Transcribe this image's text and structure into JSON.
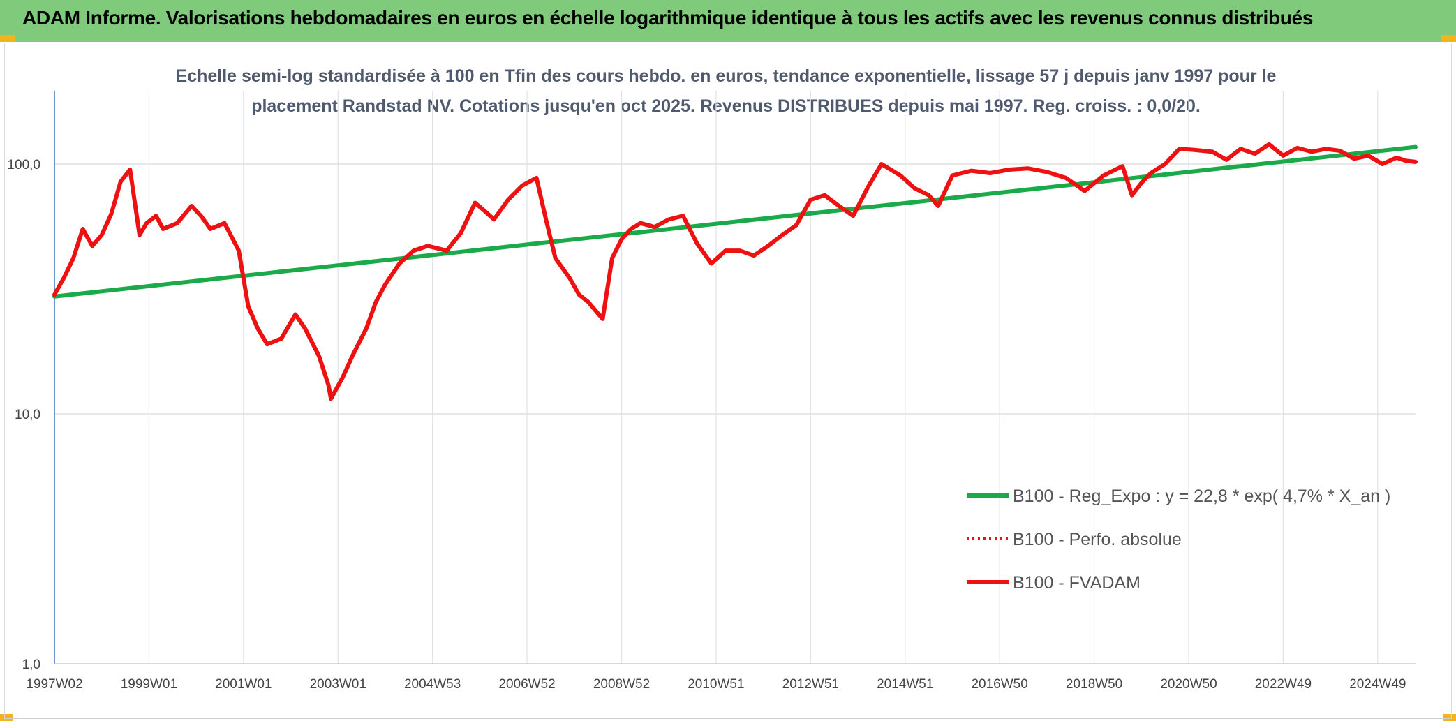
{
  "header": {
    "title": "ADAM Informe. Valorisations hebdomadaires en euros en échelle logarithmique identique à tous les actifs avec les revenus connus distribués"
  },
  "colors": {
    "header_bg": "#7fca7b",
    "corner_accent": "#f2b41c",
    "trend_line": "#1aaa4a",
    "fvadam_line": "#ee1111",
    "perfo_line": "#ee1111"
  },
  "chart_data": {
    "type": "line",
    "title_line1": "Echelle semi-log standardisée à 100 en Tfin des cours hebdo. en euros, tendance exponentielle, lissage 57 j depuis janv 1997 pour le",
    "title_line2": "placement Randstad NV. Cotations jusqu'en oct 2025. Revenus DISTRIBUES depuis mai 1997. Reg. croiss. : 0,0/20.",
    "y_scale": "log",
    "ylim": [
      1,
      100
    ],
    "x_range": [
      1997.0,
      2025.8
    ],
    "y_ticks": [
      {
        "value": 1,
        "label": "1,0"
      },
      {
        "value": 10,
        "label": "10,0"
      },
      {
        "value": 100,
        "label": "100,0"
      }
    ],
    "x_ticks": [
      {
        "pos": 1997.0,
        "label": "1997W02"
      },
      {
        "pos": 1999.0,
        "label": "1999W01"
      },
      {
        "pos": 2001.0,
        "label": "2001W01"
      },
      {
        "pos": 2003.0,
        "label": "2003W01"
      },
      {
        "pos": 2005.0,
        "label": "2004W53"
      },
      {
        "pos": 2007.0,
        "label": "2006W52"
      },
      {
        "pos": 2009.0,
        "label": "2008W52"
      },
      {
        "pos": 2011.0,
        "label": "2010W51"
      },
      {
        "pos": 2013.0,
        "label": "2012W51"
      },
      {
        "pos": 2015.0,
        "label": "2014W51"
      },
      {
        "pos": 2017.0,
        "label": "2016W50"
      },
      {
        "pos": 2019.0,
        "label": "2018W50"
      },
      {
        "pos": 2021.0,
        "label": "2020W50"
      },
      {
        "pos": 2023.0,
        "label": "2022W49"
      },
      {
        "pos": 2025.0,
        "label": "2024W49"
      }
    ],
    "grid": "vertical and horizontal, light gray",
    "legend_position": "lower-right",
    "series": [
      {
        "name": "B100 - Reg_Expo : y = 22,8 * exp( 4,7% *  X_an )",
        "style": "solid-thick",
        "color": "#1aaa4a",
        "x": [
          1997.0,
          2025.8
        ],
        "y": [
          29.5,
          117
        ]
      },
      {
        "name": "B100 - Perfo. absolue",
        "style": "dotted",
        "color": "#ee1111",
        "x": [],
        "y": []
      },
      {
        "name": "B100 - FVADAM",
        "style": "solid-thick",
        "color": "#ee1111",
        "x": [
          1997.0,
          1997.2,
          1997.4,
          1997.6,
          1997.8,
          1998.0,
          1998.2,
          1998.4,
          1998.6,
          1998.8,
          1998.95,
          1999.15,
          1999.3,
          1999.6,
          1999.9,
          2000.1,
          2000.3,
          2000.6,
          2000.9,
          2001.1,
          2001.3,
          2001.5,
          2001.8,
          2002.1,
          2002.3,
          2002.6,
          2002.8,
          2002.85,
          2003.1,
          2003.3,
          2003.6,
          2003.8,
          2004.0,
          2004.3,
          2004.6,
          2004.9,
          2005.1,
          2005.3,
          2005.6,
          2005.9,
          2006.1,
          2006.3,
          2006.6,
          2006.9,
          2007.2,
          2007.4,
          2007.6,
          2007.9,
          2008.1,
          2008.3,
          2008.6,
          2008.8,
          2009.0,
          2009.2,
          2009.4,
          2009.7,
          2010.0,
          2010.3,
          2010.6,
          2010.9,
          2011.2,
          2011.5,
          2011.8,
          2012.1,
          2012.4,
          2012.7,
          2013.0,
          2013.3,
          2013.6,
          2013.9,
          2014.2,
          2014.5,
          2014.9,
          2015.2,
          2015.5,
          2015.7,
          2016.0,
          2016.4,
          2016.8,
          2017.2,
          2017.6,
          2018.0,
          2018.4,
          2018.8,
          2019.2,
          2019.6,
          2019.8,
          2020.0,
          2020.2,
          2020.5,
          2020.8,
          2021.1,
          2021.5,
          2021.8,
          2022.1,
          2022.4,
          2022.7,
          2023.0,
          2023.3,
          2023.6,
          2023.9,
          2024.2,
          2024.5,
          2024.8,
          2025.1,
          2025.4,
          2025.6,
          2025.8
        ],
        "y": [
          30,
          35,
          42,
          55,
          47,
          52,
          63,
          85,
          95,
          52,
          58,
          62,
          55,
          58,
          68,
          62,
          55,
          58,
          45,
          27,
          22,
          19,
          20,
          25,
          22,
          17,
          13,
          11.5,
          14,
          17,
          22,
          28,
          33,
          40,
          45,
          47,
          46,
          45,
          53,
          70,
          65,
          60,
          72,
          82,
          88,
          60,
          42,
          35,
          30,
          28,
          24,
          42,
          50,
          55,
          58,
          56,
          60,
          62,
          48,
          40,
          45,
          45,
          43,
          47,
          52,
          57,
          72,
          75,
          68,
          62,
          80,
          100,
          90,
          80,
          75,
          68,
          90,
          94,
          92,
          95,
          96,
          93,
          88,
          78,
          90,
          98,
          75,
          84,
          92,
          100,
          115,
          114,
          112,
          104,
          115,
          110,
          120,
          108,
          116,
          112,
          115,
          113,
          105,
          108,
          100,
          106,
          103,
          102
        ]
      }
    ]
  },
  "legend": {
    "items": [
      {
        "label": "B100 - Reg_Expo : y = 22,8 * exp( 4,7% *  X_an )"
      },
      {
        "label": "B100 - Perfo. absolue"
      },
      {
        "label": "B100 - FVADAM"
      }
    ]
  }
}
